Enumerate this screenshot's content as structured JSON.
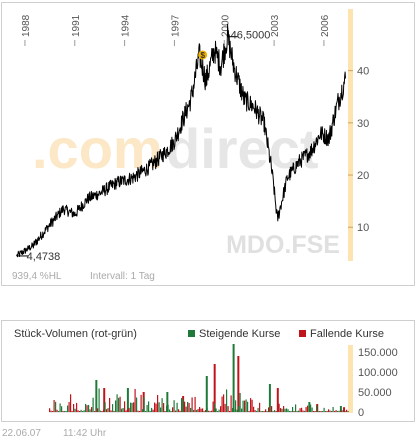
{
  "price_chart": {
    "watermark_prefix": ".com",
    "watermark_suffix": "direct",
    "symbol": "MDO.FSE",
    "performance": "939,4 %HL",
    "interval": "Intervall: 1 Tag",
    "high_label": "46,5000",
    "low_label": "4,4738",
    "year_labels": [
      "1988",
      "1991",
      "1994",
      "1997",
      "2000",
      "2003",
      "2006"
    ],
    "colors": {
      "line": "#000000",
      "axis_band": "#fde3b0",
      "grid": "#efefef",
      "marker": "#f0b000",
      "watermark_light": "#fce7c6",
      "watermark_gray": "#e6e6e6"
    }
  },
  "volume_chart": {
    "title": "Stück-Volumen (rot-grün)",
    "legend": [
      {
        "label": "Steigende Kurse",
        "color": "#1f7a3a"
      },
      {
        "label": "Fallende Kurse",
        "color": "#c0141b"
      }
    ]
  },
  "footer": {
    "date": "22.06.07",
    "time": "11:42 Uhr"
  },
  "chart_data": [
    {
      "type": "line",
      "title": "",
      "xlabel": "",
      "ylabel": "",
      "x_ticks": [
        "1988",
        "1991",
        "1994",
        "1997",
        "2000",
        "2003",
        "2006"
      ],
      "y_ticks": [
        10,
        20,
        30,
        40
      ],
      "ylim": [
        2,
        48
      ],
      "grid": false,
      "series": [
        {
          "x": [
            1987.5,
            1988.5,
            1989.5,
            1990.3,
            1991.0,
            1991.8,
            1992.5,
            1993.5,
            1994.5,
            1995.5,
            1996.5,
            1997.0,
            1997.5,
            1998.0,
            1998.5,
            1998.9,
            1999.4,
            1999.8,
            2000.2,
            2000.6,
            2001.2,
            2001.8,
            2002.4,
            2002.9,
            2003.2,
            2003.8,
            2004.5,
            2005.2,
            2005.8,
            2006.3,
            2006.8,
            2007.3
          ],
          "y": [
            4.5,
            6.5,
            10.5,
            13.5,
            12.5,
            15.5,
            16.5,
            18.5,
            19.5,
            21.5,
            24.5,
            26.5,
            30.5,
            34.5,
            43.0,
            38.0,
            44.0,
            41.0,
            46.5,
            40.5,
            34.5,
            33.0,
            30.0,
            20.0,
            11.5,
            19.5,
            22.5,
            24.5,
            28.0,
            27.0,
            33.5,
            38.5
          ]
        }
      ]
    },
    {
      "type": "bar",
      "title": "Stück-Volumen (rot-grün)",
      "y_ticks": [
        0,
        50000,
        100000,
        150000
      ],
      "y_tick_labels": [
        "0",
        "50.000",
        "100.000",
        "150.000"
      ],
      "ylim": [
        0,
        180000
      ],
      "series": [
        {
          "name": "Steigende Kurse",
          "x": [
            1991.5,
            1993.5,
            1996.0,
            1998.5,
            2000.2,
            2002.5,
            2005.0,
            2007.0
          ],
          "values": [
            80000,
            60000,
            50000,
            90000,
            170000,
            70000,
            25000,
            15000
          ]
        },
        {
          "name": "Fallende Kurse",
          "x": [
            1992.0,
            1994.5,
            1997.0,
            1999.0,
            2000.5,
            2003.0,
            2005.5,
            2007.2
          ],
          "values": [
            60000,
            50000,
            40000,
            120000,
            140000,
            60000,
            20000,
            12000
          ]
        }
      ]
    }
  ]
}
